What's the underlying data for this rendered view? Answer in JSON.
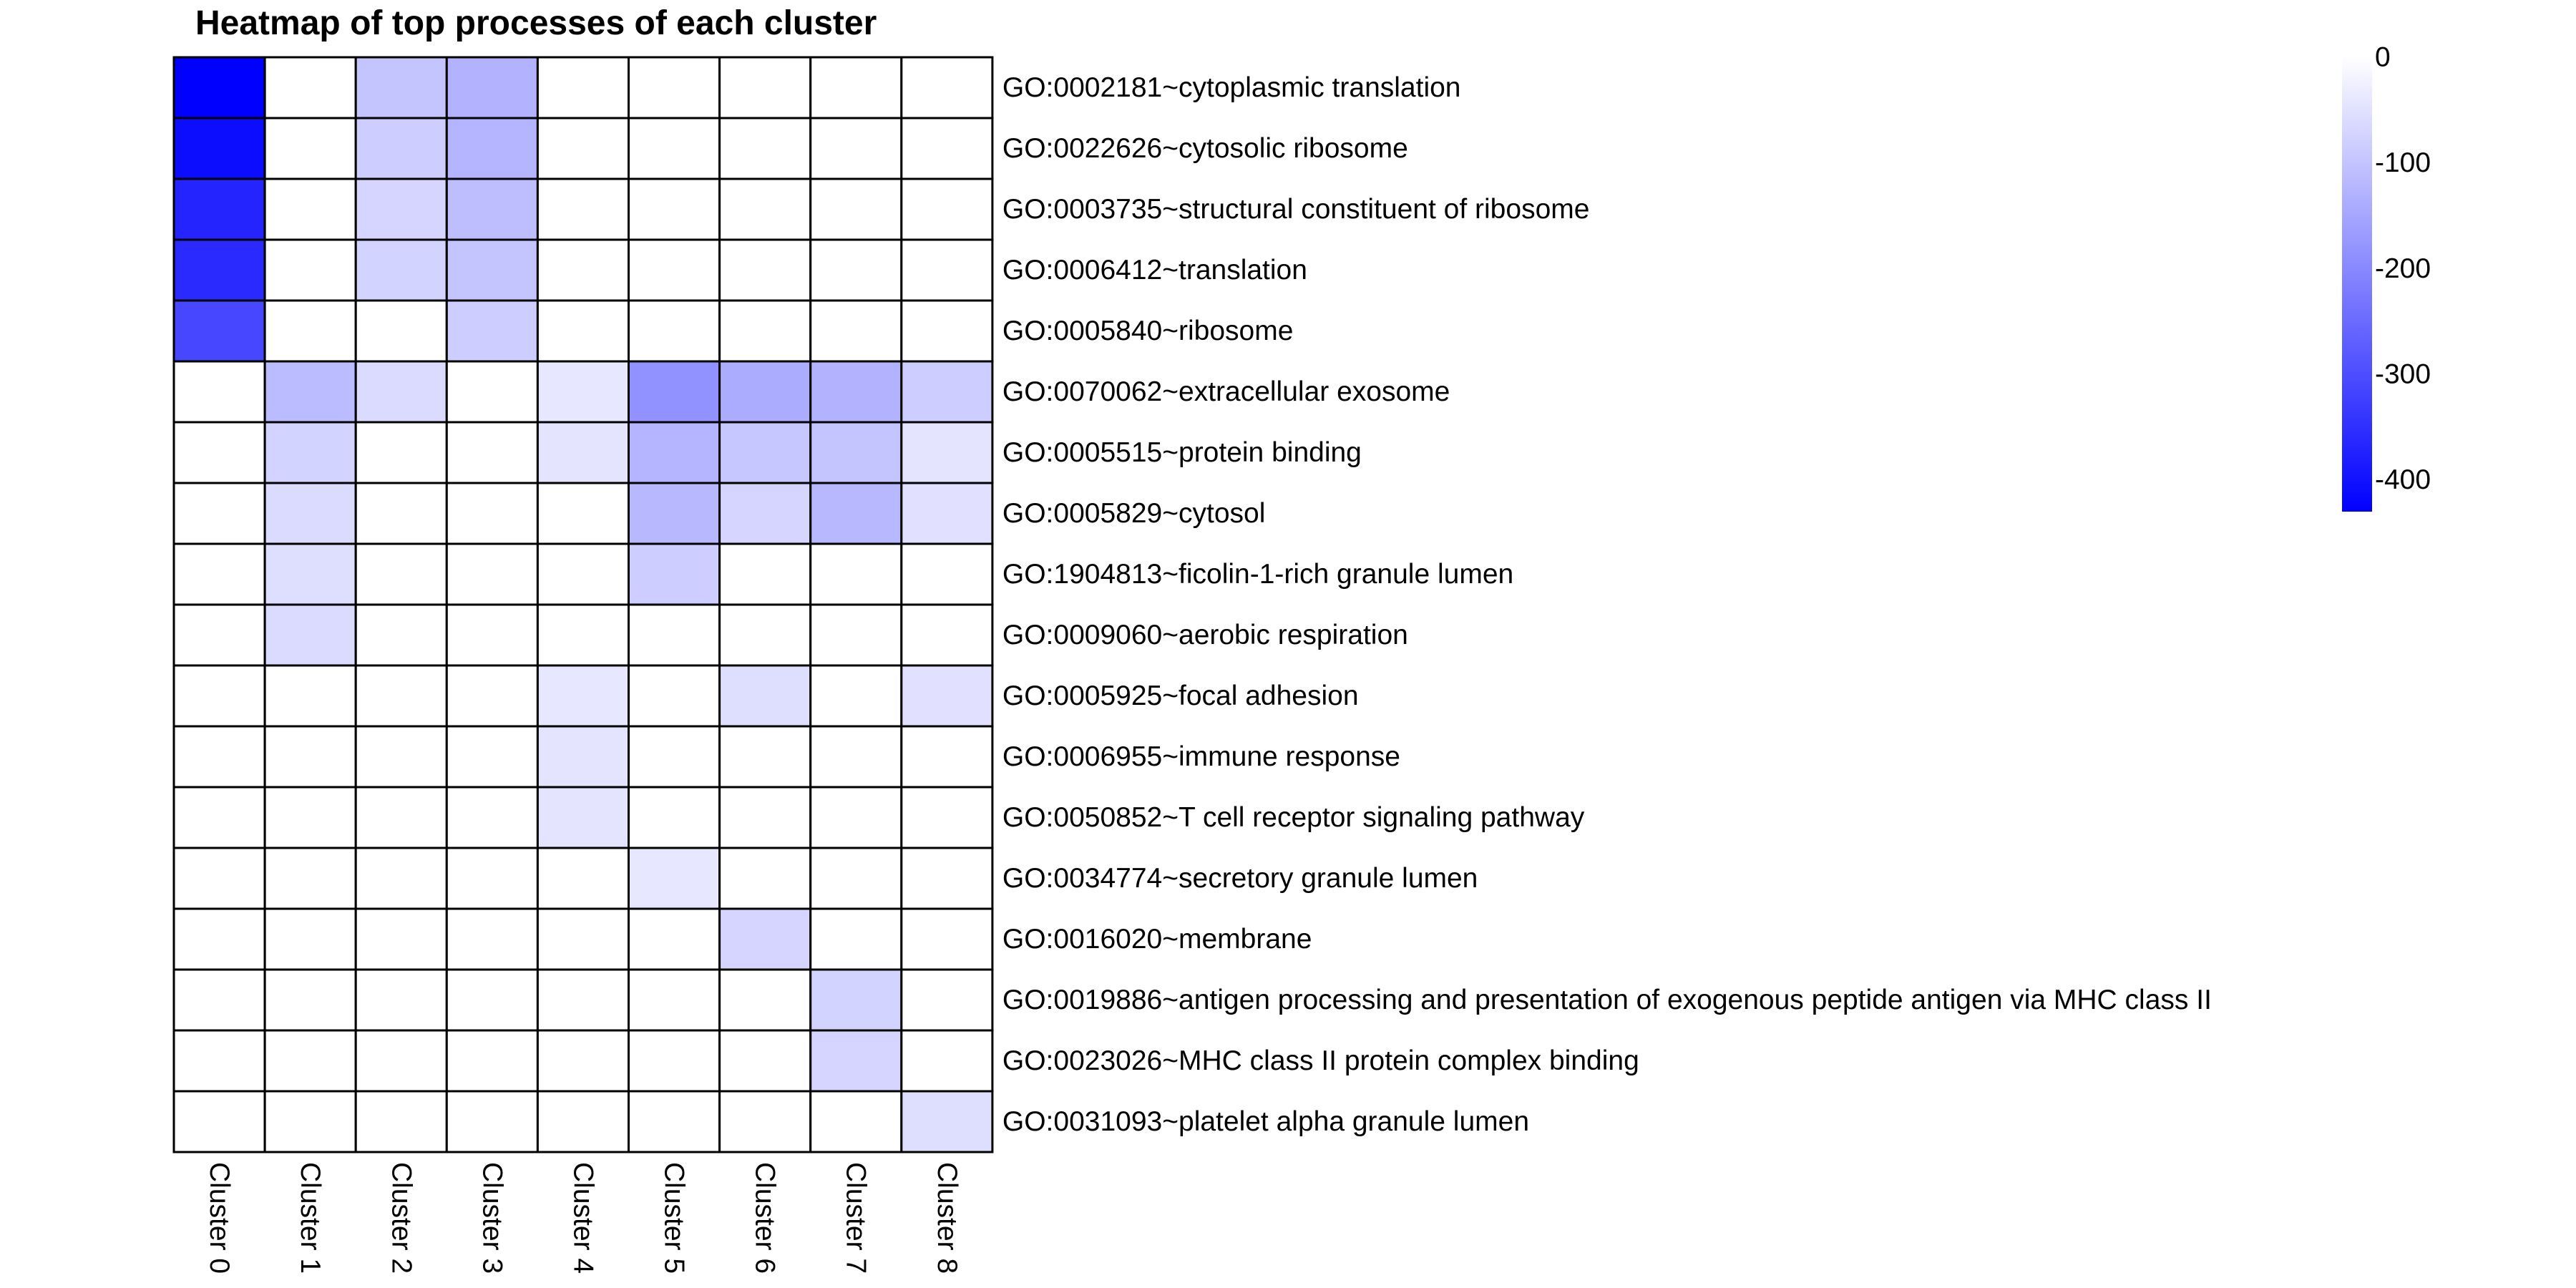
{
  "chart_data": {
    "type": "heatmap",
    "title": "Heatmap of top processes of each cluster",
    "columns": [
      "Cluster 0",
      "Cluster 1",
      "Cluster 2",
      "Cluster 3",
      "Cluster 4",
      "Cluster 5",
      "Cluster 6",
      "Cluster 7",
      "Cluster 8"
    ],
    "rows": [
      "GO:0002181~cytoplasmic translation",
      "GO:0022626~cytosolic ribosome",
      "GO:0003735~structural constituent of ribosome",
      "GO:0006412~translation",
      "GO:0005840~ribosome",
      "GO:0070062~extracellular exosome",
      "GO:0005515~protein binding",
      "GO:0005829~cytosol",
      "GO:1904813~ficolin-1-rich granule lumen",
      "GO:0009060~aerobic respiration",
      "GO:0005925~focal adhesion",
      "GO:0006955~immune response",
      "GO:0050852~T cell receptor signaling pathway",
      "GO:0034774~secretory granule lumen",
      "GO:0016020~membrane",
      "GO:0019886~antigen processing and presentation of exogenous peptide antigen via MHC class II",
      "GO:0023026~MHC class II protein complex binding",
      "GO:0031093~platelet alpha granule lumen"
    ],
    "values": [
      [
        -430,
        0,
        -100,
        -130,
        0,
        0,
        0,
        0,
        0
      ],
      [
        -410,
        0,
        -85,
        -125,
        0,
        0,
        0,
        0,
        0
      ],
      [
        -370,
        0,
        -70,
        -110,
        0,
        0,
        0,
        0,
        0
      ],
      [
        -360,
        0,
        -75,
        -100,
        0,
        0,
        0,
        0,
        0
      ],
      [
        -310,
        0,
        0,
        -85,
        0,
        0,
        0,
        0,
        0
      ],
      [
        0,
        -115,
        -60,
        0,
        -40,
        -185,
        -140,
        -130,
        -85
      ],
      [
        0,
        -75,
        0,
        0,
        -45,
        -125,
        -95,
        -100,
        -45
      ],
      [
        0,
        -60,
        0,
        0,
        0,
        -120,
        -70,
        -120,
        -50
      ],
      [
        0,
        -55,
        0,
        0,
        0,
        -85,
        0,
        0,
        0
      ],
      [
        0,
        -60,
        0,
        0,
        0,
        0,
        0,
        0,
        0
      ],
      [
        0,
        0,
        0,
        0,
        -40,
        0,
        -55,
        0,
        -50
      ],
      [
        0,
        0,
        0,
        0,
        -45,
        0,
        0,
        0,
        0
      ],
      [
        0,
        0,
        0,
        0,
        -45,
        0,
        0,
        0,
        0
      ],
      [
        0,
        0,
        0,
        0,
        0,
        -40,
        0,
        0,
        0
      ],
      [
        0,
        0,
        0,
        0,
        0,
        0,
        -70,
        0,
        0
      ],
      [
        0,
        0,
        0,
        0,
        0,
        0,
        0,
        -75,
        0
      ],
      [
        0,
        0,
        0,
        0,
        0,
        0,
        0,
        -70,
        0
      ],
      [
        0,
        0,
        0,
        0,
        0,
        0,
        0,
        0,
        -55
      ]
    ],
    "color_scale": {
      "min": -430,
      "max": 0,
      "low_color": "#0000ff",
      "high_color": "#ffffff"
    },
    "legend": {
      "ticks": [
        0,
        -100,
        -200,
        -300,
        -400
      ],
      "placement": "top-right"
    }
  }
}
